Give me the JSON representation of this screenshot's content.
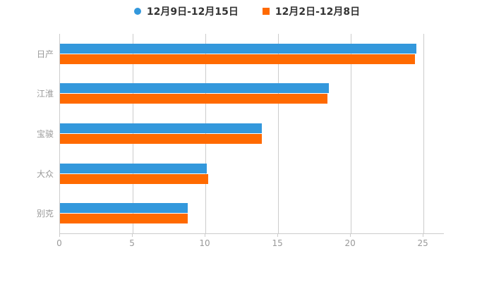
{
  "legend": {
    "items": [
      {
        "label": "12月9日-12月15日",
        "marker": "circle"
      },
      {
        "label": "12月2日-12月8日",
        "marker": "square"
      }
    ]
  },
  "chart_data": {
    "type": "bar",
    "orientation": "horizontal",
    "title": "",
    "xlabel": "",
    "ylabel": "",
    "categories": [
      "日产",
      "江淮",
      "宝骏",
      "大众",
      "别克"
    ],
    "series": [
      {
        "name": "12月9日-12月15日",
        "color": "#3398DC",
        "marker": "circle",
        "values": [
          24.5,
          18.5,
          13.9,
          10.1,
          8.8
        ]
      },
      {
        "name": "12月2日-12月8日",
        "color": "#FF6A00",
        "marker": "square",
        "values": [
          24.4,
          18.4,
          13.9,
          10.2,
          8.8
        ]
      }
    ],
    "x_ticks": [
      0,
      5,
      10,
      15,
      20,
      25
    ],
    "xlim": [
      0,
      26.4
    ],
    "grid": true,
    "legend_position": "top"
  },
  "colors": {
    "background": "#ffffff",
    "grid_line": "#cccccc",
    "axis_line": "#cccccc",
    "tick_label": "#999999",
    "category_label": "#999999",
    "legend_text": "#333333"
  }
}
